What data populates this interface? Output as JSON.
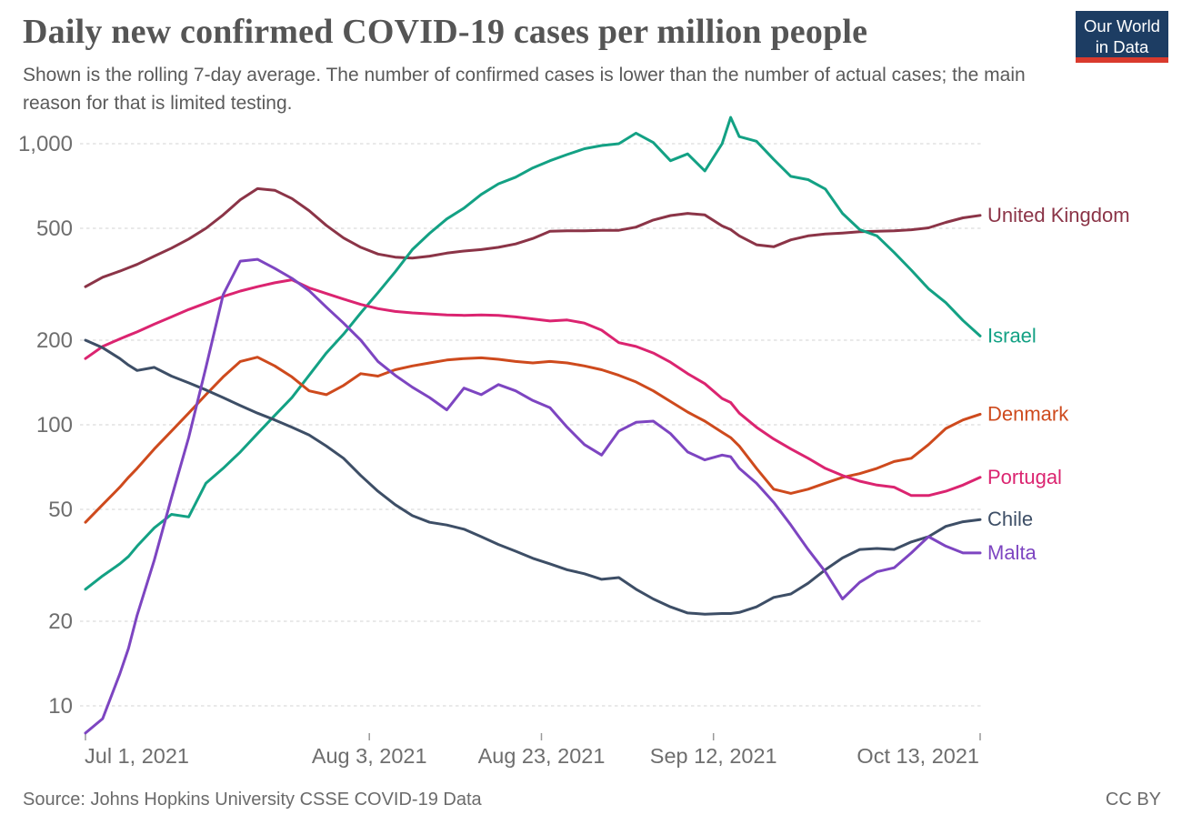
{
  "header": {
    "title": "Daily new confirmed COVID-19 cases per million people",
    "subtitle": "Shown is the rolling 7-day average. The number of confirmed cases is lower than the number of actual cases; the main reason for that is limited testing.",
    "logo": {
      "line1": "Our World",
      "line2": "in Data"
    }
  },
  "footer": {
    "source": "Source: Johns Hopkins University CSSE COVID-19 Data",
    "license": "CC BY"
  },
  "colors": {
    "background": "#ffffff",
    "title_text": "#555555",
    "subtitle_text": "#5a5a5a",
    "axis_text": "#6e6e6e",
    "gridline": "#dcdcdc",
    "tick_mark": "#999999",
    "footer_text": "#6b6b6b",
    "logo_bg": "#1d3d63",
    "logo_stripe": "#d93a2d",
    "logo_text": "#ffffff"
  },
  "chart_data": {
    "type": "line",
    "title": "Daily new confirmed COVID-19 cases per million people",
    "subtitle": "Shown is the rolling 7-day average.",
    "grid": true,
    "legend_position": "labels-at-line-ends",
    "x_axis": {
      "unit": "date",
      "start_date": "Jul 1, 2021",
      "end_date": "Oct 13, 2021",
      "max_day": 104,
      "ticks": [
        {
          "day": 0,
          "label": "Jul 1, 2021",
          "anchor": "start"
        },
        {
          "day": 33,
          "label": "Aug 3, 2021",
          "anchor": "middle"
        },
        {
          "day": 53,
          "label": "Aug 23, 2021",
          "anchor": "middle"
        },
        {
          "day": 73,
          "label": "Sep 12, 2021",
          "anchor": "middle"
        },
        {
          "day": 104,
          "label": "Oct 13, 2021",
          "anchor": "end"
        }
      ]
    },
    "y_axis": {
      "scale": "log",
      "ticks": [
        10,
        20,
        50,
        100,
        200,
        500,
        1000
      ],
      "tick_labels": [
        "10",
        "20",
        "50",
        "100",
        "200",
        "500",
        "1,000"
      ],
      "range": [
        8,
        1250
      ],
      "gridlines": true
    },
    "days": [
      0,
      2,
      4,
      5,
      6,
      8,
      10,
      12,
      14,
      16,
      18,
      20,
      22,
      24,
      26,
      28,
      30,
      32,
      34,
      36,
      38,
      40,
      42,
      44,
      46,
      48,
      50,
      52,
      54,
      56,
      58,
      60,
      62,
      64,
      66,
      68,
      70,
      72,
      74,
      75,
      76,
      78,
      80,
      82,
      84,
      86,
      88,
      90,
      92,
      94,
      96,
      98,
      100,
      102,
      104
    ],
    "series": [
      {
        "name": "United Kingdom",
        "color": "#8B3447",
        "values": [
          310,
          335,
          352,
          362,
          372,
          398,
          425,
          458,
          500,
          558,
          632,
          692,
          683,
          638,
          578,
          512,
          462,
          428,
          405,
          395,
          392,
          398,
          408,
          415,
          420,
          428,
          440,
          460,
          488,
          490,
          490,
          492,
          492,
          505,
          535,
          555,
          565,
          558,
          510,
          495,
          470,
          437,
          430,
          455,
          470,
          477,
          481,
          486,
          488,
          490,
          494,
          502,
          525,
          545,
          556
        ]
      },
      {
        "name": "Israel",
        "color": "#13A184",
        "values": [
          26,
          29,
          32,
          34,
          37,
          43,
          48,
          47,
          62,
          70,
          80,
          93,
          108,
          125,
          150,
          180,
          210,
          250,
          295,
          350,
          420,
          480,
          540,
          590,
          660,
          720,
          760,
          820,
          870,
          915,
          960,
          985,
          1000,
          1090,
          1010,
          870,
          920,
          800,
          1000,
          1240,
          1060,
          1020,
          880,
          765,
          745,
          690,
          565,
          495,
          470,
          410,
          355,
          305,
          272,
          235,
          207
        ]
      },
      {
        "name": "Denmark",
        "color": "#CE4A1D",
        "values": [
          45,
          52,
          60,
          65,
          70,
          82,
          95,
          110,
          128,
          148,
          168,
          174,
          162,
          148,
          132,
          128,
          138,
          152,
          149,
          157,
          162,
          166,
          170,
          172,
          173,
          171,
          168,
          166,
          168,
          166,
          162,
          157,
          150,
          142,
          132,
          121,
          111,
          103,
          94,
          90,
          84,
          70,
          59,
          57,
          59,
          62,
          65,
          67,
          70,
          74,
          76,
          85,
          97,
          104,
          109
        ]
      },
      {
        "name": "Portugal",
        "color": "#DB2470",
        "values": [
          172,
          190,
          202,
          208,
          214,
          228,
          242,
          257,
          271,
          286,
          299,
          310,
          320,
          328,
          307,
          293,
          280,
          268,
          259,
          253,
          250,
          248,
          246,
          245,
          246,
          245,
          242,
          238,
          234,
          236,
          230,
          217,
          196,
          190,
          180,
          167,
          152,
          140,
          124,
          120,
          110,
          98,
          89,
          82,
          76,
          70,
          66,
          63,
          61,
          60,
          56,
          56,
          58,
          61,
          65
        ]
      },
      {
        "name": "Chile",
        "color": "#3D4E66",
        "values": [
          200,
          188,
          172,
          163,
          156,
          160,
          149,
          141,
          133,
          125,
          117,
          110,
          104,
          98,
          92,
          84,
          76,
          66,
          58,
          52,
          47.5,
          45,
          44,
          42.5,
          40,
          37.5,
          35.5,
          33.5,
          32,
          30.5,
          29.5,
          28.2,
          28.6,
          26,
          24,
          22.5,
          21.4,
          21.2,
          21.3,
          21.3,
          21.5,
          22.5,
          24.3,
          25,
          27.3,
          30.5,
          33.6,
          36,
          36.3,
          36,
          38.3,
          40,
          43.5,
          45.2,
          46
        ]
      },
      {
        "name": "Malta",
        "color": "#7D45C1",
        "values": [
          8,
          9,
          13,
          16,
          21,
          33,
          55,
          90,
          160,
          290,
          382,
          388,
          360,
          332,
          300,
          262,
          230,
          200,
          168,
          150,
          136,
          125,
          113,
          135,
          128,
          139,
          132,
          122,
          115,
          98,
          85,
          78,
          95,
          102,
          103,
          93,
          80,
          75,
          78,
          77,
          70,
          62,
          53,
          44,
          36,
          30,
          24,
          27.5,
          30,
          31,
          35,
          40,
          37,
          35,
          35
        ]
      }
    ]
  }
}
